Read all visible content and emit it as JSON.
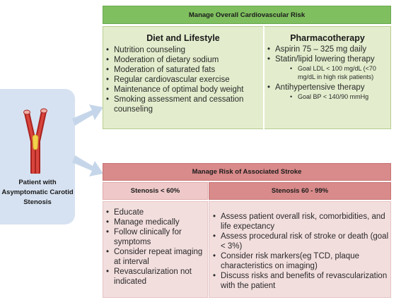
{
  "patient": {
    "label": "Patient with Asymptomatic Carotid Stenosis"
  },
  "cardio": {
    "header": "Manage Overall Cardiovascular Risk",
    "diet": {
      "title": "Diet and Lifestyle",
      "items": [
        "Nutrition counseling",
        "Moderation of dietary sodium",
        "Moderation of saturated fats",
        "Regular cardiovascular exercise",
        "Maintenance of optimal body weight",
        "Smoking assessment and cessation counseling"
      ]
    },
    "pharm": {
      "title": "Pharmacotherapy",
      "items": [
        {
          "text": "Aspirin 75 – 325 mg daily",
          "sub": []
        },
        {
          "text": "Statin/lipid lowering therapy",
          "sub": [
            "Goal LDL < 100 mg/dL (<70 mg/dL in high risk patients)"
          ]
        },
        {
          "text": "Antihypertensive therapy",
          "sub": [
            "Goal BP < 140/90 mmHg"
          ]
        }
      ]
    }
  },
  "stroke": {
    "header": "Manage  Risk of Associated Stroke",
    "low": {
      "title": "Stenosis < 60%",
      "items": [
        "Educate",
        "Manage medically",
        "Follow clinically for symptoms",
        "Consider repeat imaging at interval",
        "Revascularization not indicated"
      ]
    },
    "high": {
      "title": "Stenosis 60 - 99%",
      "items": [
        "Assess patient overall risk, comorbidities, and life expectancy",
        "Assess procedural risk of stroke or death (goal < 3%)",
        "Consider risk markers(eg TCD, plaque characteristics on imaging)",
        "Discuss risks and benefits of revascularization with the patient"
      ]
    }
  },
  "colors": {
    "green_header": "#7fbf5f",
    "green_body": "#e3edcd",
    "red_header": "#d98a8a",
    "red_body": "#f3dede",
    "patient_box": "#d6e2f1",
    "arrow": "#c6d6ea"
  }
}
